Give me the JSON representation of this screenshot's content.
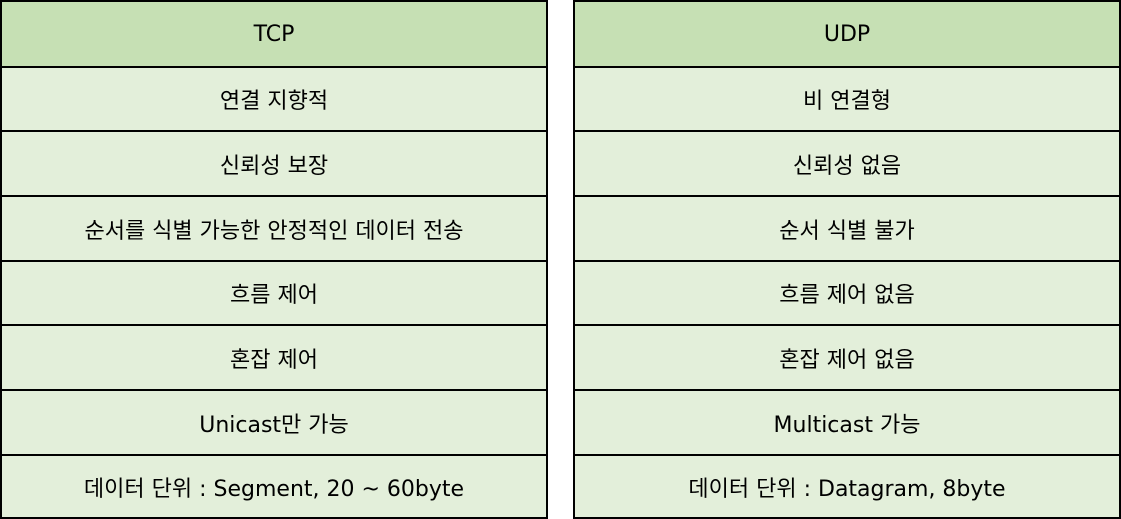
{
  "tcp": {
    "header": "TCP",
    "rows": [
      "연결 지향적",
      "신뢰성 보장",
      "순서를 식별 가능한 안정적인 데이터 전송",
      "흐름 제어",
      "혼잡 제어",
      "Unicast만 가능",
      "데이터 단위 : Segment, 20 ~ 60byte"
    ]
  },
  "udp": {
    "header": "UDP",
    "rows": [
      "비 연결형",
      "신뢰성 없음",
      "순서 식별 불가",
      "흐름 제어 없음",
      "혼잡 제어 없음",
      "Multicast 가능",
      "데이터 단위 : Datagram, 8byte"
    ]
  },
  "colors": {
    "header_bg": "#c6e0b4",
    "cell_bg": "#e3efda",
    "border": "#000000"
  }
}
